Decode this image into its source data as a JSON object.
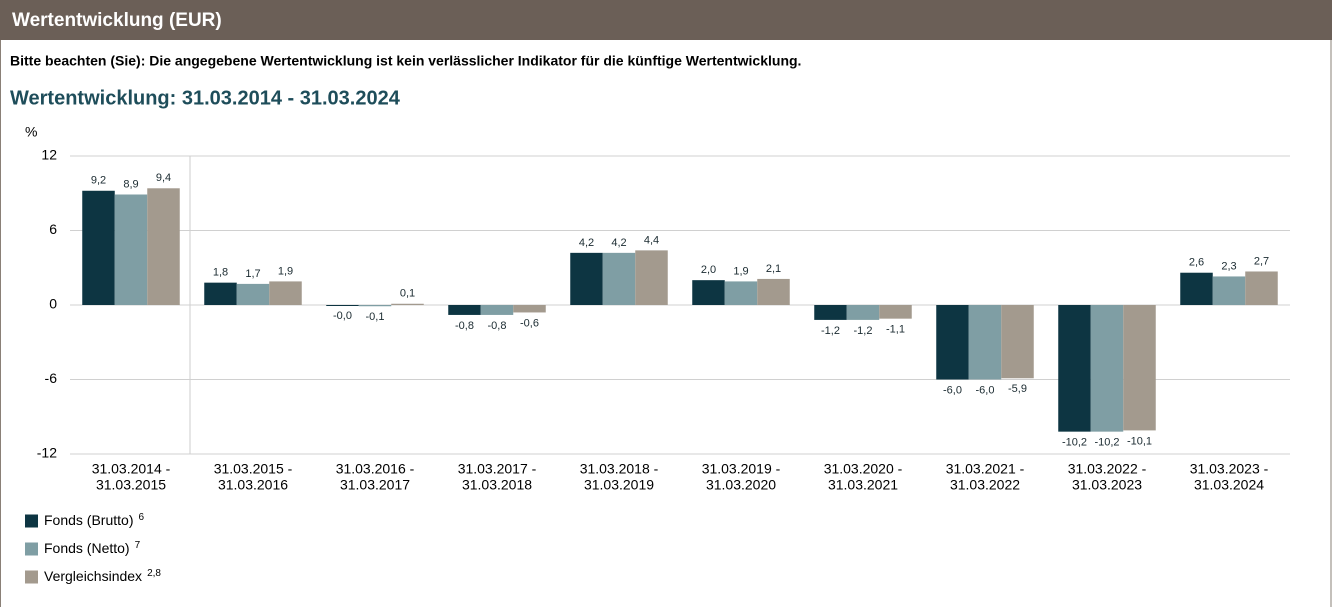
{
  "header": {
    "title": "Wertentwicklung (EUR)"
  },
  "notice": "Bitte beachten (Sie): Die angegebene Wertentwicklung ist kein verlässlicher Indikator für die künftige Wertentwicklung.",
  "chart_data": {
    "type": "bar",
    "title": "Wertentwicklung: 31.03.2014 - 31.03.2024",
    "y_label": "%",
    "categories": [
      [
        "31.03.2014 -",
        "31.03.2015"
      ],
      [
        "31.03.2015 -",
        "31.03.2016"
      ],
      [
        "31.03.2016 -",
        "31.03.2017"
      ],
      [
        "31.03.2017 -",
        "31.03.2018"
      ],
      [
        "31.03.2018 -",
        "31.03.2019"
      ],
      [
        "31.03.2019 -",
        "31.03.2020"
      ],
      [
        "31.03.2020 -",
        "31.03.2021"
      ],
      [
        "31.03.2021 -",
        "31.03.2022"
      ],
      [
        "31.03.2022 -",
        "31.03.2023"
      ],
      [
        "31.03.2023 -",
        "31.03.2024"
      ]
    ],
    "series": [
      {
        "name": "Fonds (Brutto)",
        "footnote": "6",
        "color": "#0d3542",
        "values": [
          9.2,
          1.8,
          -0.0,
          -0.8,
          4.2,
          2.0,
          -1.2,
          -6.0,
          -10.2,
          2.6
        ],
        "value_labels": [
          "9,2",
          "1,8",
          "-0,0",
          "-0,8",
          "4,2",
          "2,0",
          "-1,2",
          "-6,0",
          "-10,2",
          "2,6"
        ]
      },
      {
        "name": "Fonds (Netto)",
        "footnote": "7",
        "color": "#7f9ea4",
        "values": [
          8.9,
          1.7,
          -0.1,
          -0.8,
          4.2,
          1.9,
          -1.2,
          -6.0,
          -10.2,
          2.3
        ],
        "value_labels": [
          "8,9",
          "1,7",
          "-0,1",
          "-0,8",
          "4,2",
          "1,9",
          "-1,2",
          "-6,0",
          "-10,2",
          "2,3"
        ]
      },
      {
        "name": "Vergleichsindex",
        "footnote": "2,8",
        "color": "#a39a8e",
        "values": [
          9.4,
          1.9,
          0.1,
          -0.6,
          4.4,
          2.1,
          -1.1,
          -5.9,
          -10.1,
          2.7
        ],
        "value_labels": [
          "9,4",
          "1,9",
          "0,1",
          "-0,6",
          "4,4",
          "2,1",
          "-1,1",
          "-5,9",
          "-10,1",
          "2,7"
        ]
      }
    ],
    "ylim": [
      -12,
      12
    ],
    "yticks": [
      12,
      6,
      0,
      -6,
      -12
    ],
    "grid": true
  }
}
